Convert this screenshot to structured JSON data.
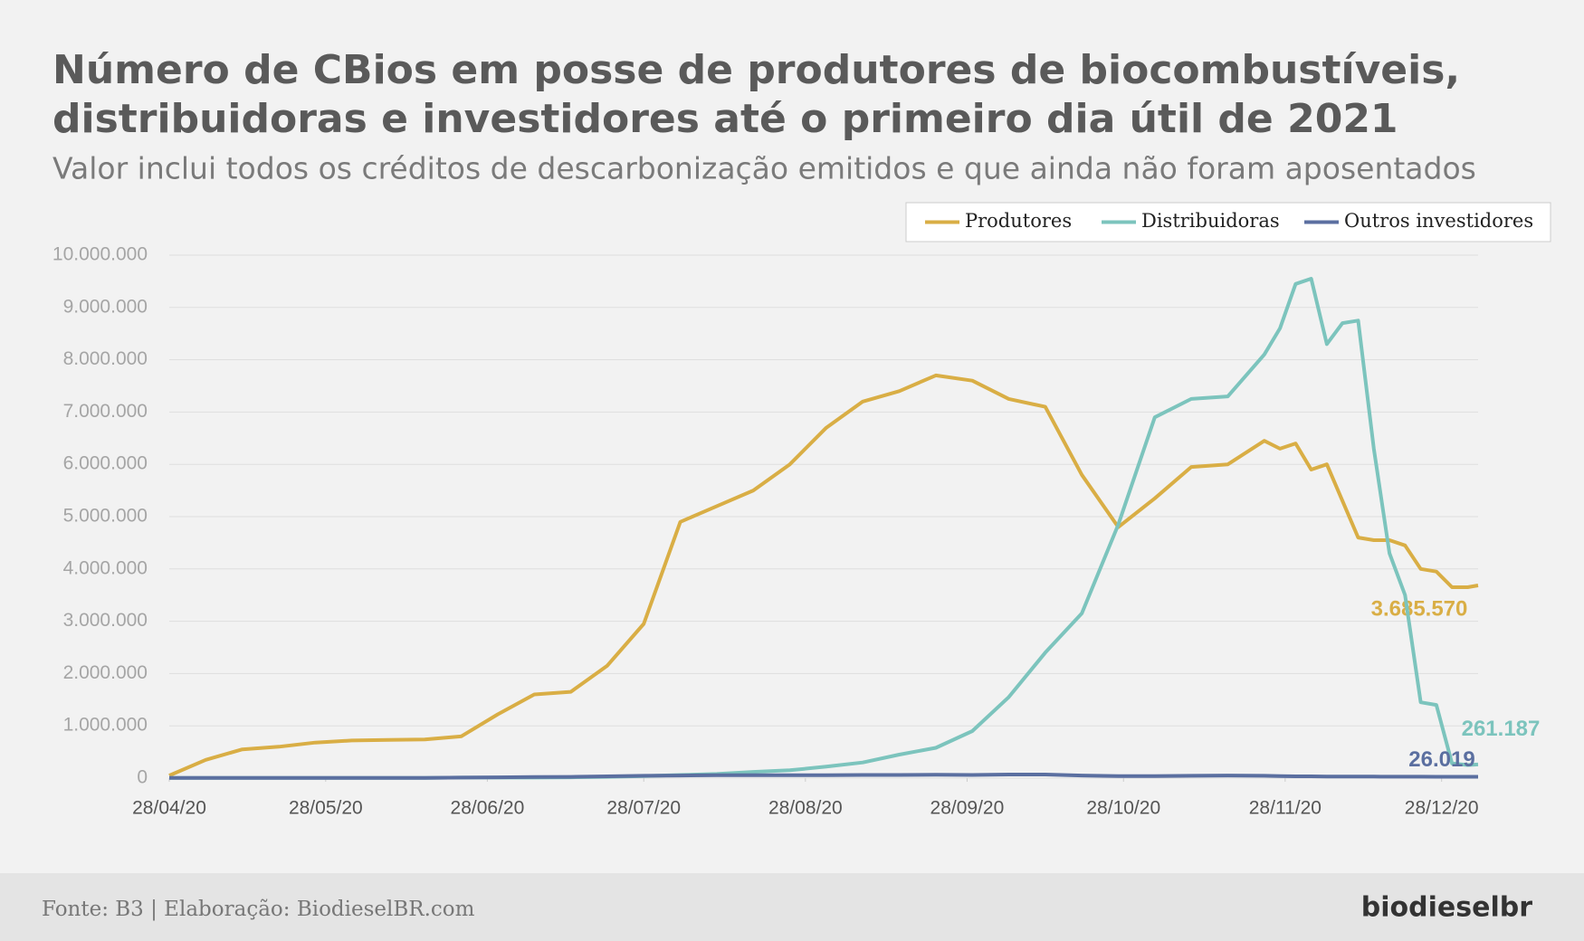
{
  "chart_data": {
    "type": "line",
    "title": [
      "Número de CBios em posse de produtores de biocombustíveis,",
      "distribuidoras e investidores até o primeiro dia útil de 2021"
    ],
    "subtitle": "Valor inclui todos os créditos de descarbonização emitidos e que ainda não foram aposentados",
    "x": [
      "2020-04-28",
      "2020-05-05",
      "2020-05-12",
      "2020-05-19",
      "2020-05-26",
      "2020-06-02",
      "2020-06-09",
      "2020-06-16",
      "2020-06-23",
      "2020-06-30",
      "2020-07-07",
      "2020-07-14",
      "2020-07-21",
      "2020-07-28",
      "2020-08-04",
      "2020-08-11",
      "2020-08-18",
      "2020-08-25",
      "2020-09-01",
      "2020-09-08",
      "2020-09-15",
      "2020-09-22",
      "2020-09-29",
      "2020-10-06",
      "2020-10-13",
      "2020-10-20",
      "2020-10-27",
      "2020-11-03",
      "2020-11-10",
      "2020-11-17",
      "2020-11-24",
      "2020-11-27",
      "2020-11-30",
      "2020-12-03",
      "2020-12-06",
      "2020-12-09",
      "2020-12-12",
      "2020-12-15",
      "2020-12-18",
      "2020-12-21",
      "2020-12-24",
      "2020-12-27",
      "2020-12-30",
      "2021-01-02",
      "2021-01-04"
    ],
    "series": [
      {
        "name": "Produtores",
        "color": "#d9ae45",
        "values": [
          50000,
          350000,
          550000,
          600000,
          680000,
          720000,
          730000,
          740000,
          800000,
          1220000,
          1600000,
          1650000,
          2150000,
          2950000,
          4900000,
          5200000,
          5500000,
          6000000,
          6700000,
          7200000,
          7400000,
          7700000,
          7600000,
          7250000,
          7100000,
          5800000,
          4800000,
          5350000,
          5950000,
          6000000,
          6450000,
          6300000,
          6400000,
          5900000,
          6000000,
          5300000,
          4600000,
          4550000,
          4550000,
          4450000,
          4000000,
          3950000,
          3650000,
          3650000,
          3685570
        ],
        "value_labels": [
          null,
          null,
          null,
          null,
          null,
          null,
          null,
          null,
          null,
          null,
          null,
          null,
          null,
          null,
          null,
          null,
          null,
          null,
          null,
          null,
          null,
          null,
          null,
          null,
          null,
          null,
          null,
          null,
          null,
          null,
          null,
          null,
          null,
          null,
          null,
          null,
          null,
          null,
          null,
          null,
          null,
          null,
          null,
          null,
          "3.685.570"
        ]
      },
      {
        "name": "Distribuidoras",
        "color": "#7cc4bd",
        "values": [
          5000,
          5000,
          5000,
          5000,
          5000,
          5000,
          5000,
          5000,
          10000,
          10000,
          10000,
          15000,
          25000,
          40000,
          60000,
          80000,
          120000,
          150000,
          220000,
          300000,
          450000,
          580000,
          900000,
          1550000,
          2400000,
          3150000,
          4850000,
          6900000,
          7250000,
          7300000,
          8100000,
          8600000,
          9450000,
          9550000,
          8300000,
          8700000,
          8750000,
          6300000,
          4300000,
          3500000,
          1450000,
          1400000,
          280000,
          250000,
          261187
        ],
        "value_labels": [
          null,
          null,
          null,
          null,
          null,
          null,
          null,
          null,
          null,
          null,
          null,
          null,
          null,
          null,
          null,
          null,
          null,
          null,
          null,
          null,
          null,
          null,
          null,
          null,
          null,
          null,
          null,
          null,
          null,
          null,
          null,
          null,
          null,
          null,
          null,
          null,
          null,
          null,
          null,
          null,
          null,
          null,
          null,
          null,
          "261.187"
        ]
      },
      {
        "name": "Outros investidores",
        "color": "#5b6fa0",
        "values": [
          5000,
          5000,
          5000,
          5000,
          5000,
          5000,
          5000,
          5000,
          10000,
          15000,
          20000,
          25000,
          35000,
          45000,
          50000,
          55000,
          55000,
          55000,
          55000,
          60000,
          60000,
          65000,
          60000,
          70000,
          70000,
          50000,
          40000,
          40000,
          45000,
          50000,
          45000,
          40000,
          35000,
          35000,
          30000,
          30000,
          30000,
          30000,
          28000,
          27000,
          27000,
          26000,
          26000,
          26000,
          26019
        ],
        "value_labels": [
          null,
          null,
          null,
          null,
          null,
          null,
          null,
          null,
          null,
          null,
          null,
          null,
          null,
          null,
          null,
          null,
          null,
          null,
          null,
          null,
          null,
          null,
          null,
          null,
          null,
          null,
          null,
          null,
          null,
          null,
          null,
          null,
          null,
          null,
          null,
          null,
          null,
          null,
          null,
          null,
          null,
          null,
          null,
          null,
          "26.019"
        ]
      }
    ],
    "xlim": [
      "2020-04-28",
      "2021-01-04"
    ],
    "xticks": [
      {
        "value": "2020-04-28",
        "label": "28/04/20"
      },
      {
        "value": "2020-05-28",
        "label": "28/05/20"
      },
      {
        "value": "2020-06-28",
        "label": "28/06/20"
      },
      {
        "value": "2020-07-28",
        "label": "28/07/20"
      },
      {
        "value": "2020-08-28",
        "label": "28/08/20"
      },
      {
        "value": "2020-09-28",
        "label": "28/09/20"
      },
      {
        "value": "2020-10-28",
        "label": "28/10/20"
      },
      {
        "value": "2020-11-28",
        "label": "28/11/20"
      },
      {
        "value": "2020-12-28",
        "label": "28/12/20"
      }
    ],
    "ylim": [
      0,
      10000000
    ],
    "yticks": [
      0,
      {
        "value": 1000000,
        "label": "1.000.000"
      },
      {
        "value": 2000000,
        "label": "2.000.000"
      },
      {
        "value": 3000000,
        "label": "3.000.000"
      },
      {
        "value": 4000000,
        "label": "4.000.000"
      },
      {
        "value": 5000000,
        "label": "5.000.000"
      },
      {
        "value": 6000000,
        "label": "6.000.000"
      },
      {
        "value": 7000000,
        "label": "7.000.000"
      },
      {
        "value": 8000000,
        "label": "8.000.000"
      },
      {
        "value": 9000000,
        "label": "9.000.000"
      },
      {
        "value": 10000000,
        "label": "10.000.000"
      }
    ],
    "grid": true,
    "legend": "top-right",
    "source": "Fonte: B3 | Elaboração: BiodieselBR.com",
    "logo": "biodieselbr"
  }
}
